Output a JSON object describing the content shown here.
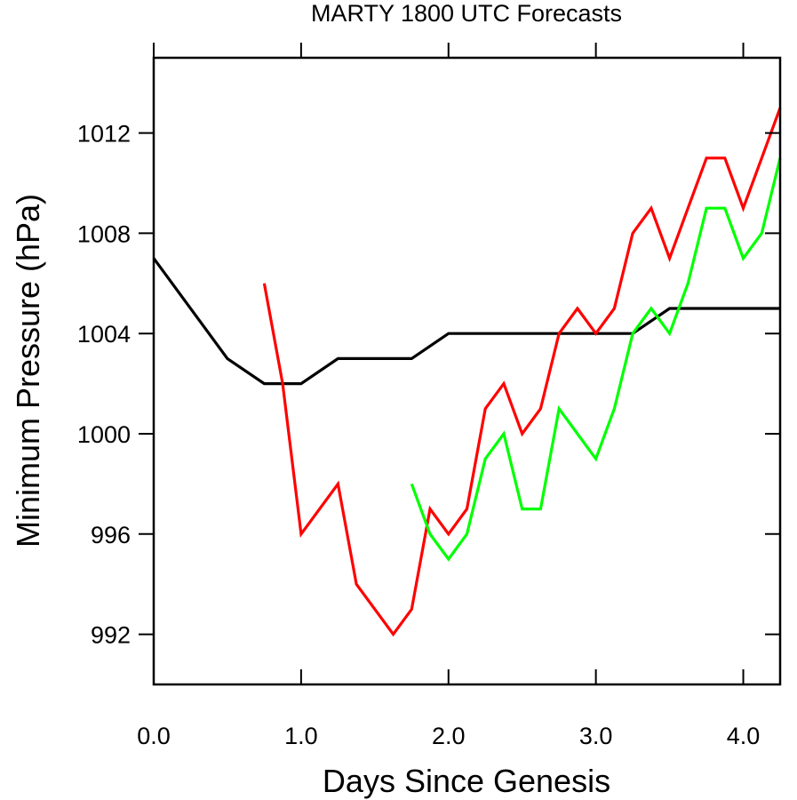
{
  "chart_data": {
    "type": "line",
    "title": "MARTY 1800 UTC Forecasts",
    "xlabel": "Days Since Genesis",
    "ylabel": "Minimum Pressure (hPa)",
    "xlim": [
      0,
      4.25
    ],
    "ylim": [
      990,
      1015
    ],
    "xticks": [
      "0.0",
      "1.0",
      "2.0",
      "3.0",
      "4.0"
    ],
    "yticks": [
      "992",
      "996",
      "1000",
      "1004",
      "1008",
      "1012"
    ],
    "grid": false,
    "series": [
      {
        "color": "#000000",
        "points": [
          [
            0,
            1007
          ],
          [
            0.5,
            1003
          ],
          [
            0.75,
            1002
          ],
          [
            1.0,
            1002
          ],
          [
            1.25,
            1003
          ],
          [
            1.5,
            1003
          ],
          [
            1.75,
            1003
          ],
          [
            2.0,
            1004
          ],
          [
            2.25,
            1004
          ],
          [
            2.5,
            1004
          ],
          [
            2.75,
            1004
          ],
          [
            3.0,
            1004
          ],
          [
            3.25,
            1004
          ],
          [
            3.5,
            1005
          ],
          [
            3.75,
            1005
          ],
          [
            4.0,
            1005
          ],
          [
            4.25,
            1005
          ]
        ]
      },
      {
        "color": "#ff0000",
        "points": [
          [
            0.75,
            1006
          ],
          [
            0.875,
            1002
          ],
          [
            1.0,
            996
          ],
          [
            1.25,
            998
          ],
          [
            1.375,
            994
          ],
          [
            1.625,
            992
          ],
          [
            1.75,
            993
          ],
          [
            1.875,
            997
          ],
          [
            2.0,
            996
          ],
          [
            2.125,
            997
          ],
          [
            2.25,
            1001
          ],
          [
            2.375,
            1002
          ],
          [
            2.5,
            1000
          ],
          [
            2.625,
            1001
          ],
          [
            2.75,
            1004
          ],
          [
            2.875,
            1005
          ],
          [
            3.0,
            1004
          ],
          [
            3.125,
            1005
          ],
          [
            3.25,
            1008
          ],
          [
            3.375,
            1009
          ],
          [
            3.5,
            1007
          ],
          [
            3.625,
            1009
          ],
          [
            3.75,
            1011
          ],
          [
            3.875,
            1011
          ],
          [
            4.0,
            1009
          ],
          [
            4.125,
            1011
          ],
          [
            4.25,
            1013
          ]
        ]
      },
      {
        "color": "#00ff00",
        "points": [
          [
            1.75,
            998
          ],
          [
            1.875,
            996
          ],
          [
            2.0,
            995
          ],
          [
            2.125,
            996
          ],
          [
            2.25,
            999
          ],
          [
            2.375,
            1000
          ],
          [
            2.5,
            997
          ],
          [
            2.625,
            997
          ],
          [
            2.75,
            1001
          ],
          [
            2.875,
            1000
          ],
          [
            3.0,
            999
          ],
          [
            3.125,
            1001
          ],
          [
            3.25,
            1004
          ],
          [
            3.375,
            1005
          ],
          [
            3.5,
            1004
          ],
          [
            3.625,
            1006
          ],
          [
            3.75,
            1009
          ],
          [
            3.875,
            1009
          ],
          [
            4.0,
            1007
          ],
          [
            4.125,
            1008
          ],
          [
            4.25,
            1011
          ]
        ]
      }
    ]
  }
}
